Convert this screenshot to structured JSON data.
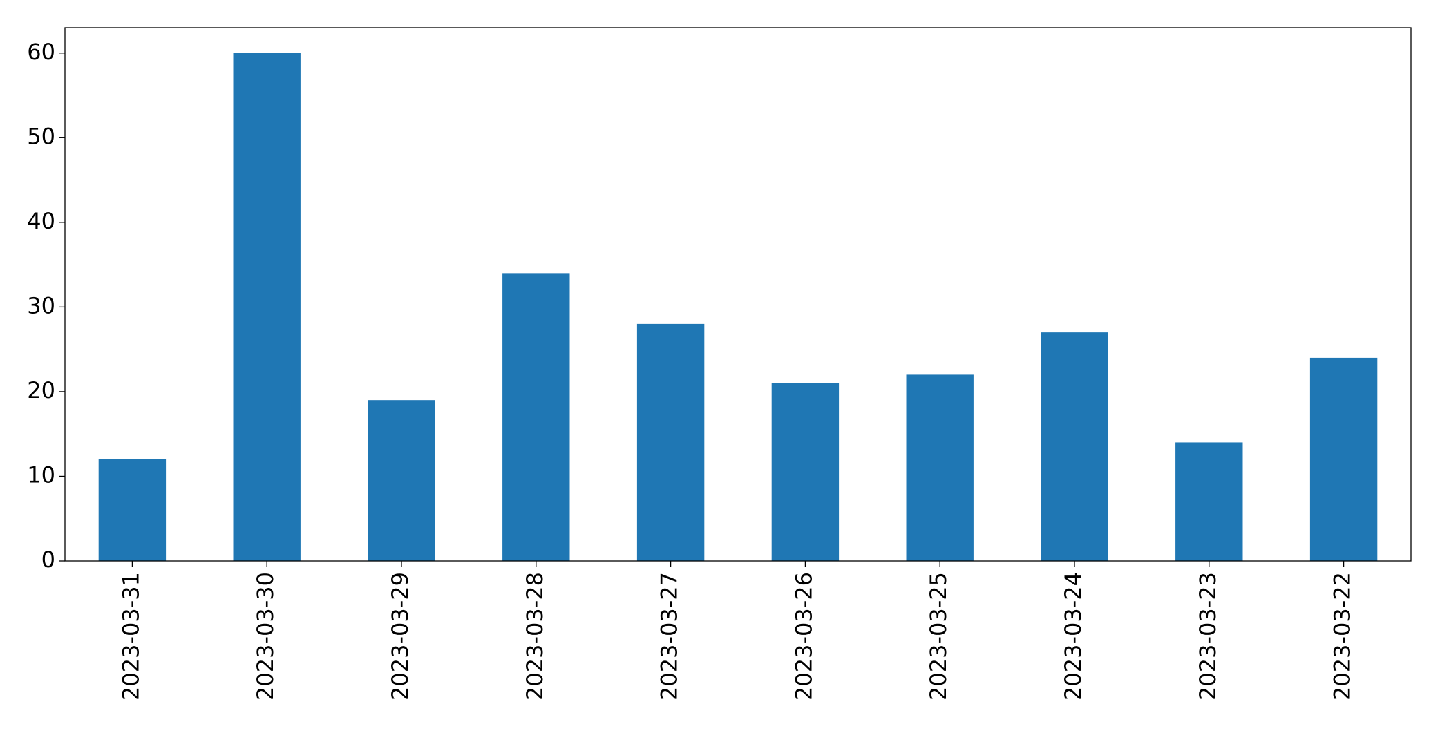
{
  "chart_data": {
    "type": "bar",
    "categories": [
      "2023-03-31",
      "2023-03-30",
      "2023-03-29",
      "2023-03-28",
      "2023-03-27",
      "2023-03-26",
      "2023-03-25",
      "2023-03-24",
      "2023-03-23",
      "2023-03-22"
    ],
    "values": [
      12,
      60,
      19,
      34,
      28,
      21,
      22,
      27,
      14,
      24
    ],
    "color": "#1f77b4",
    "ylim": [
      0,
      63
    ],
    "yticks": [
      0,
      10,
      20,
      30,
      40,
      50,
      60
    ],
    "grid": false
  }
}
